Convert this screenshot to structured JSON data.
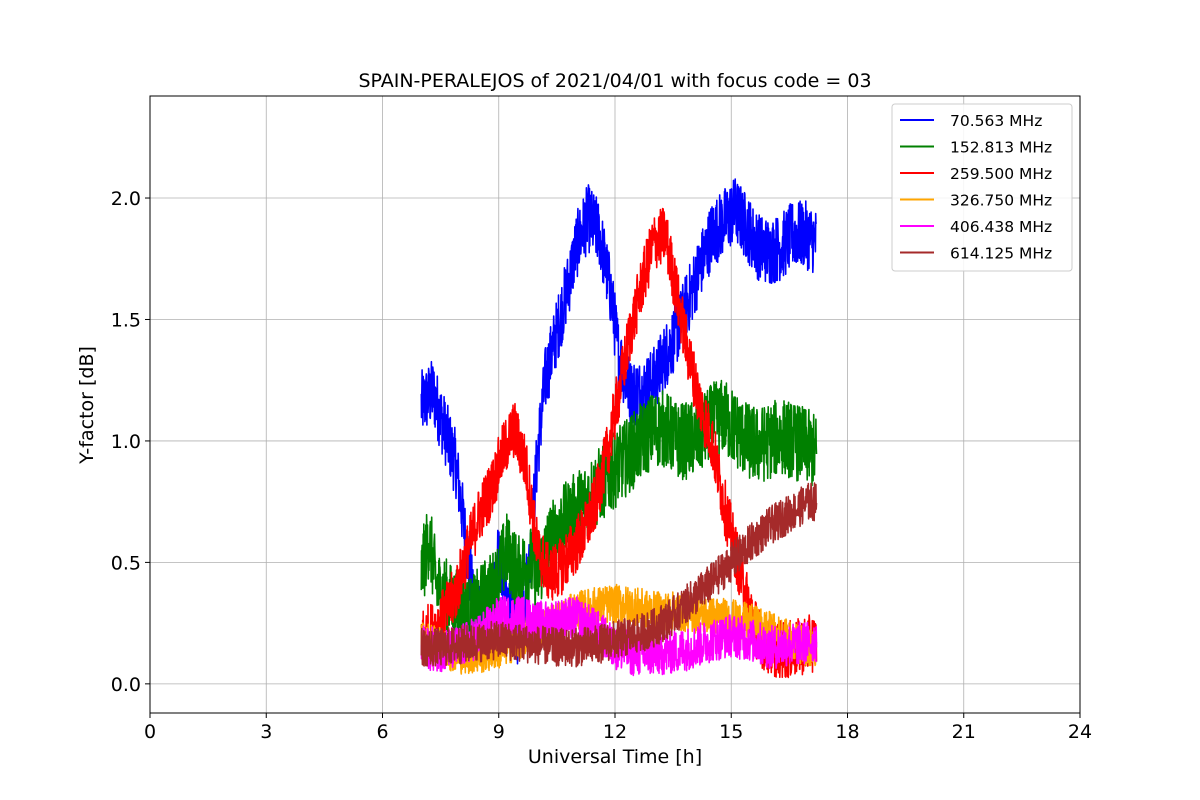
{
  "chart_data": {
    "type": "line",
    "title": "SPAIN-PERALEJOS of 2021/04/01 with focus code = 03",
    "xlabel": "Universal Time [h]",
    "ylabel": "Y-factor [dB]",
    "xlim": [
      0,
      24
    ],
    "ylim": [
      -0.12,
      2.42
    ],
    "xticks": [
      0,
      3,
      6,
      9,
      12,
      15,
      18,
      21,
      24
    ],
    "xtick_labels": [
      "0",
      "3",
      "6",
      "9",
      "12",
      "15",
      "18",
      "21",
      "24"
    ],
    "yticks": [
      0.0,
      0.5,
      1.0,
      1.5,
      2.0
    ],
    "ytick_labels": [
      "0.0",
      "0.5",
      "1.0",
      "1.5",
      "2.0"
    ],
    "grid": true,
    "legend_position": "top-right",
    "series": [
      {
        "name": " 70.563 MHz",
        "color": "#0000ff",
        "noise": 0.14,
        "x": [
          7.0,
          7.3,
          7.6,
          7.9,
          8.1,
          8.3,
          8.6,
          8.8,
          9.0,
          9.2,
          9.5,
          9.8,
          10.0,
          10.2,
          10.5,
          10.8,
          11.0,
          11.3,
          11.6,
          11.9,
          12.1,
          12.4,
          12.7,
          13.0,
          13.3,
          13.6,
          13.9,
          14.2,
          14.5,
          14.8,
          15.1,
          15.4,
          15.7,
          16.0,
          16.3,
          16.6,
          16.9,
          17.2
        ],
        "y": [
          1.15,
          1.2,
          1.05,
          0.9,
          0.65,
          0.4,
          0.22,
          0.3,
          0.55,
          0.35,
          0.2,
          0.5,
          0.95,
          1.25,
          1.45,
          1.65,
          1.8,
          1.92,
          1.85,
          1.6,
          1.35,
          1.2,
          1.2,
          1.25,
          1.35,
          1.45,
          1.58,
          1.72,
          1.85,
          1.9,
          1.95,
          1.88,
          1.8,
          1.78,
          1.8,
          1.85,
          1.85,
          1.82
        ]
      },
      {
        "name": "152.813 MHz",
        "color": "#008000",
        "noise": 0.16,
        "x": [
          7.0,
          7.2,
          7.4,
          7.7,
          8.0,
          8.3,
          8.6,
          8.9,
          9.2,
          9.5,
          9.8,
          10.0,
          10.3,
          10.6,
          10.9,
          11.2,
          11.5,
          11.8,
          12.1,
          12.4,
          12.7,
          13.0,
          13.3,
          13.6,
          13.9,
          14.2,
          14.5,
          14.8,
          15.1,
          15.4,
          15.7,
          16.0,
          16.3,
          16.6,
          16.9,
          17.2
        ],
        "y": [
          0.45,
          0.6,
          0.4,
          0.35,
          0.3,
          0.28,
          0.35,
          0.4,
          0.55,
          0.45,
          0.5,
          0.45,
          0.58,
          0.65,
          0.7,
          0.75,
          0.8,
          0.85,
          0.9,
          0.95,
          1.0,
          1.05,
          1.05,
          1.0,
          1.0,
          1.02,
          1.08,
          1.1,
          1.05,
          1.0,
          0.98,
          1.0,
          1.02,
          1.0,
          0.98,
          0.95
        ]
      },
      {
        "name": "259.500 MHz",
        "color": "#ff0000",
        "noise": 0.12,
        "x": [
          7.0,
          7.3,
          7.6,
          7.9,
          8.2,
          8.5,
          8.8,
          9.1,
          9.4,
          9.7,
          10.0,
          10.3,
          10.6,
          10.9,
          11.2,
          11.5,
          11.8,
          12.1,
          12.4,
          12.7,
          13.0,
          13.3,
          13.6,
          13.9,
          14.2,
          14.5,
          14.8,
          15.1,
          15.4,
          15.7,
          16.0,
          16.3,
          16.6,
          16.9,
          17.2
        ],
        "y": [
          0.2,
          0.22,
          0.28,
          0.38,
          0.55,
          0.7,
          0.8,
          0.95,
          1.05,
          0.9,
          0.55,
          0.45,
          0.48,
          0.55,
          0.62,
          0.75,
          0.95,
          1.2,
          1.45,
          1.65,
          1.82,
          1.85,
          1.6,
          1.35,
          1.15,
          1.0,
          0.75,
          0.55,
          0.35,
          0.2,
          0.15,
          0.14,
          0.14,
          0.16,
          0.17
        ]
      },
      {
        "name": "326.750 MHz",
        "color": "#ffa500",
        "noise": 0.08,
        "x": [
          7.0,
          7.5,
          8.0,
          8.5,
          9.0,
          9.5,
          10.0,
          10.5,
          11.0,
          11.5,
          12.0,
          12.5,
          13.0,
          13.5,
          14.0,
          14.5,
          15.0,
          15.5,
          16.0,
          16.5,
          17.0,
          17.2
        ],
        "y": [
          0.18,
          0.15,
          0.12,
          0.12,
          0.14,
          0.18,
          0.22,
          0.26,
          0.3,
          0.32,
          0.33,
          0.32,
          0.3,
          0.3,
          0.29,
          0.28,
          0.27,
          0.25,
          0.22,
          0.18,
          0.15,
          0.14
        ]
      },
      {
        "name": "406.438 MHz",
        "color": "#ff00ff",
        "noise": 0.09,
        "x": [
          7.0,
          7.5,
          8.0,
          8.5,
          9.0,
          9.5,
          10.0,
          10.5,
          11.0,
          11.5,
          12.0,
          12.5,
          13.0,
          13.5,
          14.0,
          14.5,
          15.0,
          15.5,
          16.0,
          16.5,
          17.0,
          17.2
        ],
        "y": [
          0.15,
          0.14,
          0.15,
          0.2,
          0.27,
          0.28,
          0.25,
          0.26,
          0.27,
          0.22,
          0.15,
          0.12,
          0.12,
          0.13,
          0.15,
          0.18,
          0.2,
          0.18,
          0.15,
          0.16,
          0.17,
          0.18
        ]
      },
      {
        "name": "614.125 MHz",
        "color": "#a52a2a",
        "noise": 0.08,
        "x": [
          7.0,
          7.5,
          8.0,
          8.5,
          9.0,
          9.5,
          10.0,
          10.5,
          11.0,
          11.5,
          12.0,
          12.5,
          13.0,
          13.5,
          14.0,
          14.5,
          15.0,
          15.5,
          16.0,
          16.5,
          17.0,
          17.2
        ],
        "y": [
          0.15,
          0.15,
          0.16,
          0.17,
          0.18,
          0.17,
          0.16,
          0.15,
          0.15,
          0.16,
          0.18,
          0.2,
          0.23,
          0.28,
          0.35,
          0.42,
          0.5,
          0.58,
          0.65,
          0.7,
          0.75,
          0.75
        ]
      }
    ]
  }
}
